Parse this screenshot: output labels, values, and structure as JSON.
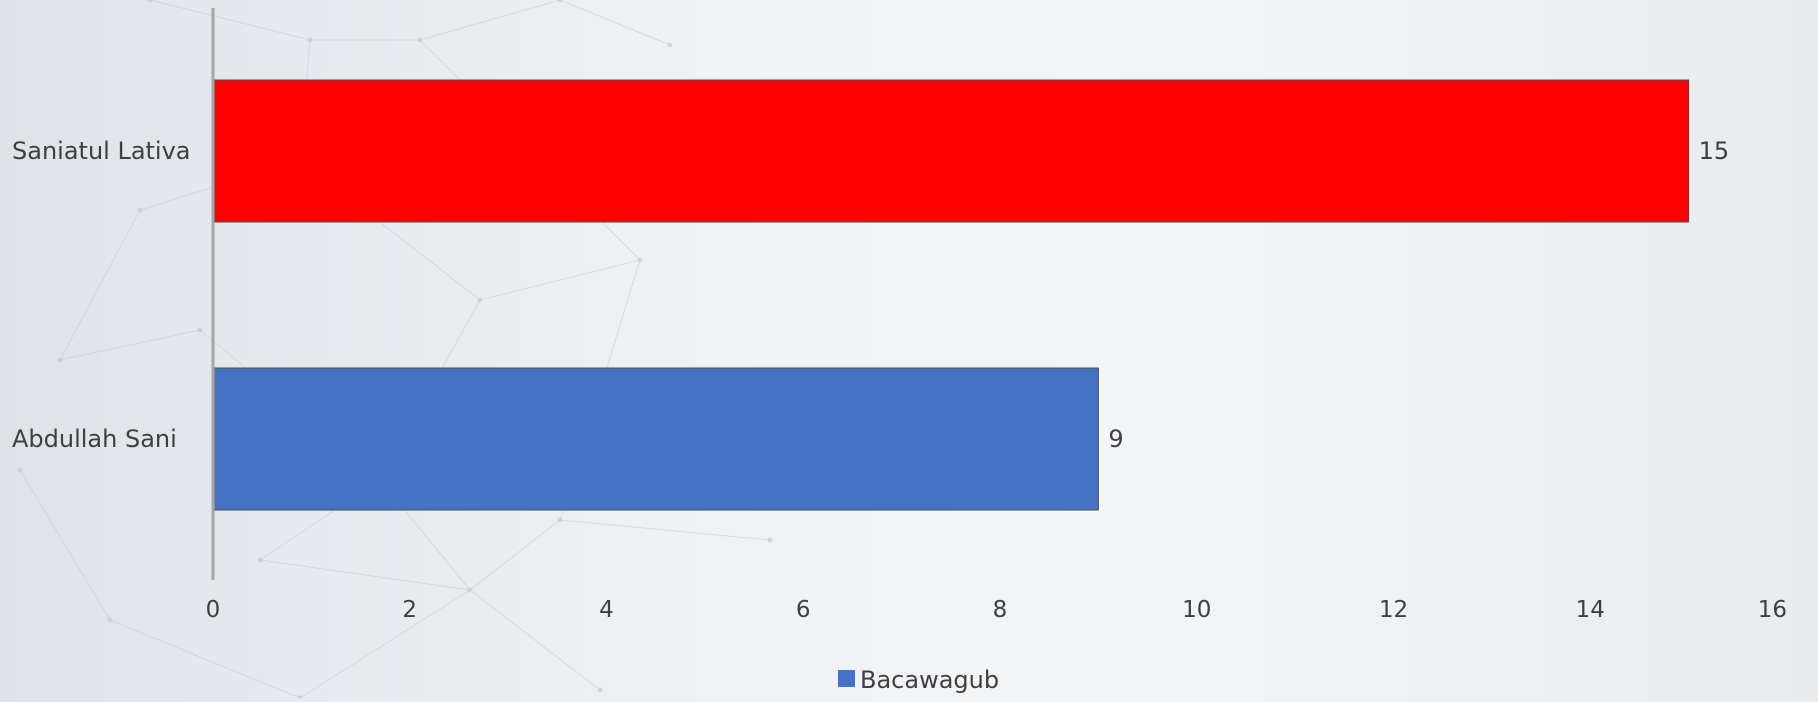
{
  "chart_data": {
    "type": "bar",
    "orientation": "horizontal",
    "categories": [
      "Saniatul Lativa",
      "Abdullah Sani"
    ],
    "series": [
      {
        "name": "Bacawagub",
        "values": [
          15,
          9
        ],
        "colors": [
          "#ff0000",
          "#4472c4"
        ]
      }
    ],
    "data_labels": [
      "15",
      "9"
    ],
    "xlim": [
      0,
      16
    ],
    "x_ticks": [
      0,
      2,
      4,
      6,
      8,
      10,
      12,
      14,
      16
    ],
    "grid": false,
    "legend": {
      "position": "bottom",
      "entries": [
        {
          "label": "Bacawagub",
          "color": "#4472c4"
        }
      ]
    }
  }
}
